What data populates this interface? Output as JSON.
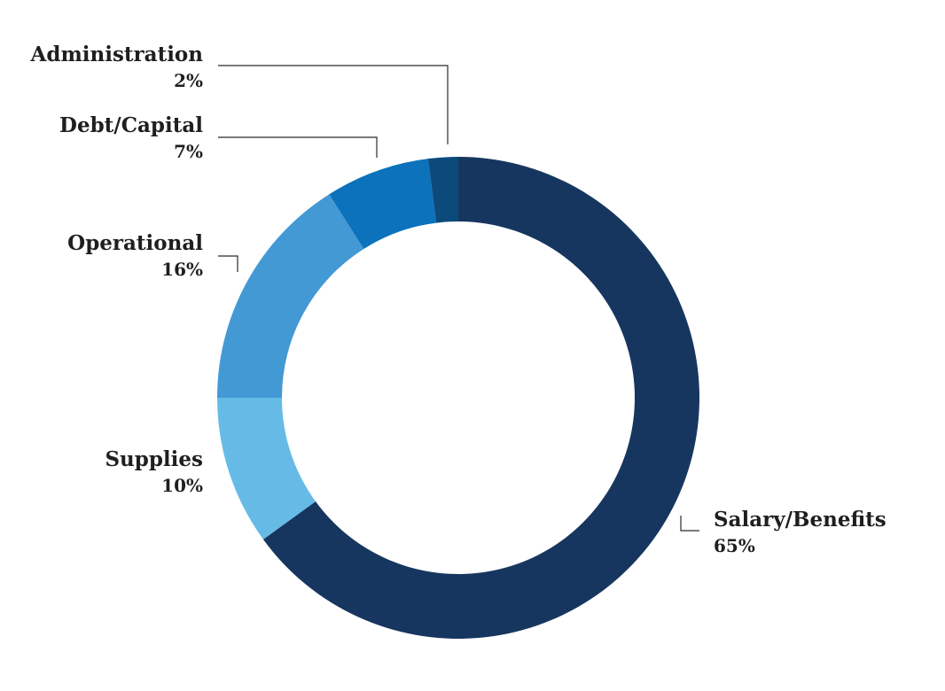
{
  "chart_data": {
    "type": "pie",
    "style": "donut",
    "slices": [
      {
        "label": "Salary/Benefits",
        "value": 65,
        "value_label": "65%",
        "color": "#17365f"
      },
      {
        "label": "Supplies",
        "value": 10,
        "value_label": "10%",
        "color": "#66bbe6"
      },
      {
        "label": "Operational",
        "value": 16,
        "value_label": "16%",
        "color": "#4399d4"
      },
      {
        "label": "Debt/Capital",
        "value": 7,
        "value_label": "7%",
        "color": "#0b72bb"
      },
      {
        "label": "Administration",
        "value": 2,
        "value_label": "2%",
        "color": "#0d4a7c"
      }
    ],
    "start": "top",
    "direction": "clockwise",
    "legend": "none"
  }
}
